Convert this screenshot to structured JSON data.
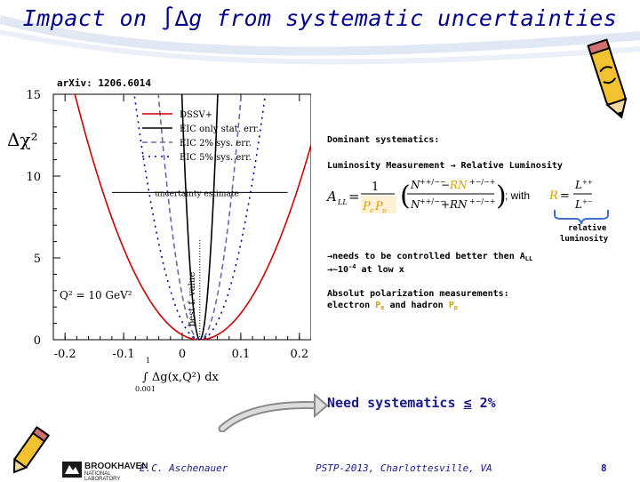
{
  "slide": {
    "title": "Impact on ∫∆g from systematic uncertainties",
    "reference": "arXiv: 1206.6014",
    "dominant_label": "Dominant systematics:",
    "luminosity_line": "Luminosity Measurement → Relative Luminosity",
    "formula_with": "; with",
    "relative_luminosity_line1": "relative",
    "relative_luminosity_line2": "luminosity",
    "bullet1_pre": "→needs to be controlled better then A",
    "bullet1_sub": "LL",
    "bullet2_pre": "→~10",
    "bullet2_sup": "-4",
    "bullet2_post": " at low x",
    "absolut_line1": "Absolut polarization measurements:",
    "absolut_line2_a": "electron ",
    "absolut_line2_pe": "P",
    "absolut_line2_pe_sub": "e",
    "absolut_line2_b": " and hadron ",
    "absolut_line2_pp": "P",
    "absolut_line2_pp_sub": "p",
    "need_pre": "Need systematics ",
    "need_u": "≤",
    "need_post": " 2%",
    "footer_author": "E.C. Aschenauer",
    "footer_conf": "PSTP-2013, Charlottesville, VA",
    "page_number": "8",
    "logo_text": "BROOKHAVEN",
    "logo_sub": "NATIONAL LABORATORY",
    "colors": {
      "title": "#00008b",
      "accent": "#d4a000",
      "pol": "#d4a000"
    }
  },
  "chart_data": {
    "type": "line",
    "ylabel": "Δχ²",
    "xlabel": "∫ Δg(x,Q²) dx",
    "xlabel_lower": "0.001",
    "xlabel_upper": "1",
    "xlim": [
      -0.22,
      0.22
    ],
    "ylim": [
      0,
      15
    ],
    "xticks": [
      "-0.2",
      "-0.1",
      "0",
      "0.1",
      "0.2"
    ],
    "yticks": [
      "0",
      "5",
      "10",
      "15"
    ],
    "legend": [
      "DSSV+",
      "EIC only stat. err.",
      "EIC 2% sys. err.",
      "EIC 5% sys. err."
    ],
    "uncertainty_label": "uncertainty estimate",
    "bestfit_label": "best f. value",
    "q2_label": "Q² = 10 GeV²",
    "best_fit_x": 0.03,
    "series": [
      {
        "name": "DSSV+",
        "color": "#cc0000",
        "dash": "",
        "curvature": 330,
        "minimum": 0.03
      },
      {
        "name": "EIC only stat. err.",
        "color": "#000000",
        "dash": "",
        "curvature": 16000,
        "minimum": 0.03
      },
      {
        "name": "EIC 2% sys. err.",
        "color": "#6a6aaa",
        "dash": "6,4",
        "curvature": 3000,
        "minimum": 0.03
      },
      {
        "name": "EIC 5% sys. err.",
        "color": "#0000aa",
        "dash": "2,5",
        "curvature": 1200,
        "minimum": 0.03
      }
    ],
    "uncertainty_level": 9
  }
}
